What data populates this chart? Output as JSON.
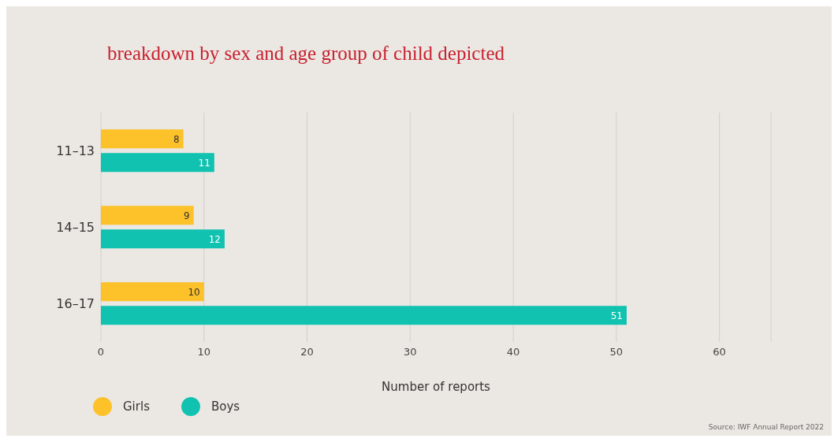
{
  "chart_data": {
    "type": "bar",
    "orientation": "horizontal",
    "title": "breakdown by sex and age group of child depicted",
    "xlabel": "Number of reports",
    "categories": [
      "11–13",
      "14–15",
      "16–17"
    ],
    "series": [
      {
        "name": "Girls",
        "color": "#fdc12a",
        "values": [
          8,
          9,
          10
        ]
      },
      {
        "name": "Boys",
        "color": "#11c2b0",
        "values": [
          11,
          12,
          51
        ]
      }
    ],
    "xlim": [
      0,
      65
    ],
    "xticks": [
      0,
      10,
      20,
      30,
      40,
      50,
      60
    ],
    "grid": "x",
    "legend": "bottom left",
    "data_labels": true,
    "annotations": [
      "Source: IWF Annual Report 2022"
    ]
  }
}
